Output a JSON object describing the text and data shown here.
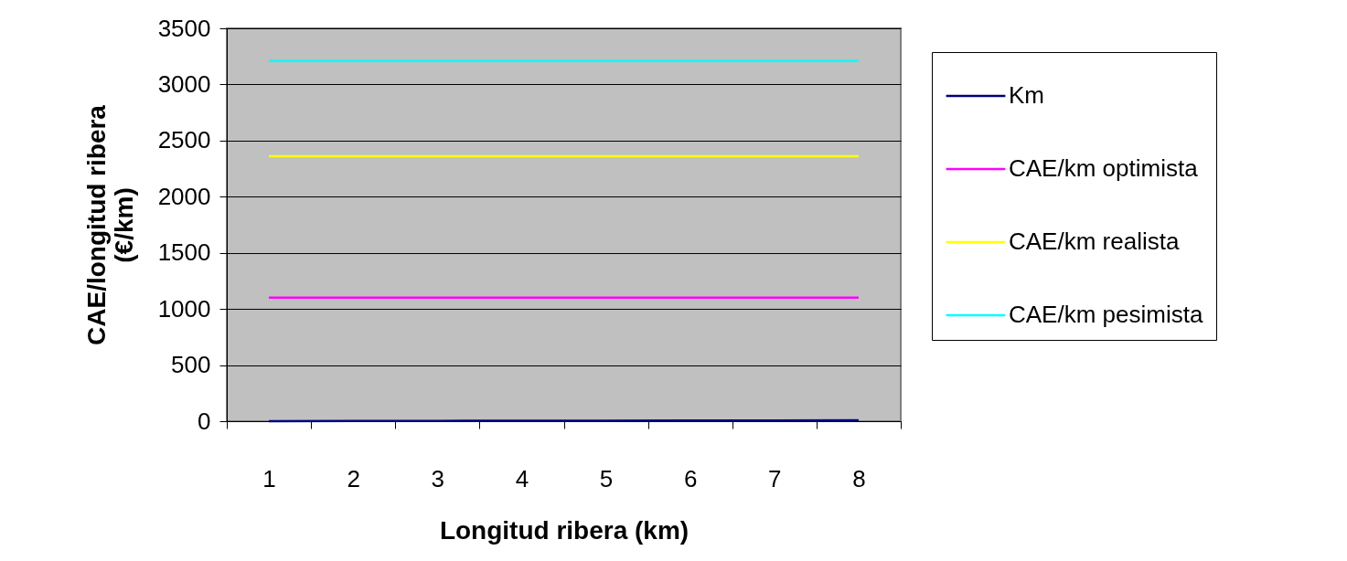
{
  "chart_data": {
    "type": "line",
    "xlabel": "Longitud ribera (km)",
    "ylabel": "CAE/longitud ribera (€/km)",
    "categories": [
      "1",
      "2",
      "3",
      "4",
      "5",
      "6",
      "7",
      "8"
    ],
    "series": [
      {
        "name": "Km",
        "color": "#000080",
        "values": [
          1,
          2,
          3,
          4,
          5,
          6,
          7,
          8
        ]
      },
      {
        "name": "CAE/km optimista",
        "color": "#ff00ff",
        "values": [
          1100,
          1100,
          1100,
          1100,
          1100,
          1100,
          1100,
          1100
        ]
      },
      {
        "name": "CAE/km realista",
        "color": "#ffff00",
        "values": [
          2360,
          2360,
          2360,
          2360,
          2360,
          2360,
          2360,
          2360
        ]
      },
      {
        "name": "CAE/km pesimista",
        "color": "#00ffff",
        "values": [
          3210,
          3210,
          3210,
          3210,
          3210,
          3210,
          3210,
          3210
        ]
      }
    ],
    "ylim": [
      0,
      3500
    ],
    "yticks": [
      0,
      500,
      1000,
      1500,
      2000,
      2500,
      3000,
      3500
    ],
    "grid": "y",
    "legend": "right",
    "marker": "none",
    "line_style": "solid"
  }
}
